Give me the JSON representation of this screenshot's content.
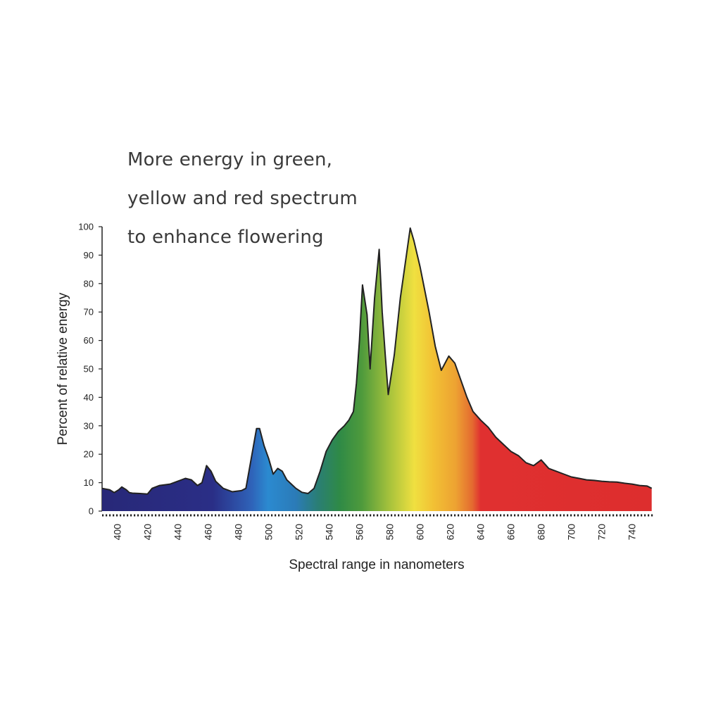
{
  "annotation": {
    "lines": [
      "More energy in green,",
      "yellow and red spectrum",
      "to enhance flowering"
    ]
  },
  "chart_data": {
    "type": "area",
    "title": "",
    "xlabel": "Spectral range in nanometers",
    "ylabel": "Percent of relative energy",
    "xlim": [
      390,
      755
    ],
    "ylim": [
      0,
      100
    ],
    "xticks": [
      400,
      420,
      440,
      460,
      480,
      500,
      520,
      540,
      560,
      580,
      600,
      620,
      640,
      660,
      680,
      700,
      720,
      740
    ],
    "yticks": [
      0,
      10,
      20,
      30,
      40,
      50,
      60,
      70,
      80,
      90,
      100
    ],
    "grid": false,
    "colors": {
      "violet": "#2a2a80",
      "blue": "#2b8ad0",
      "green": "#2f8a46",
      "yellow": "#f0e040",
      "orange": "#f0a030",
      "red": "#e03030",
      "outline": "#222222"
    },
    "series": [
      {
        "x": [
          390,
          395,
          398,
          401,
          403,
          406,
          408,
          410,
          415,
          420,
          423,
          428,
          435,
          440,
          445,
          449,
          453,
          456,
          459,
          462,
          465,
          470,
          476,
          482,
          485,
          488,
          490,
          492,
          494,
          497,
          500,
          503,
          506,
          509,
          512,
          515,
          518,
          522,
          526,
          530,
          534,
          538,
          542,
          546,
          550,
          553,
          556,
          558,
          560,
          562,
          565,
          567,
          570,
          573,
          575,
          577,
          579,
          583,
          587,
          591,
          593.5,
          596,
          600,
          606,
          610,
          614,
          619,
          623,
          627,
          631,
          635,
          640,
          645,
          650,
          655,
          660,
          665,
          670,
          675,
          680,
          685,
          690,
          695,
          700,
          705,
          710,
          715,
          720,
          725,
          730,
          735,
          740,
          745,
          750,
          753
        ],
        "y": [
          8,
          7.5,
          6.5,
          7.5,
          8.5,
          7.5,
          6.5,
          6.3,
          6.2,
          6,
          8,
          9,
          9.5,
          10.5,
          11.5,
          11,
          9,
          10,
          16,
          14,
          10.5,
          8,
          6.8,
          7.2,
          8,
          17,
          23,
          29,
          29,
          23,
          18.5,
          13,
          15,
          14,
          11,
          9.5,
          8,
          6.6,
          6.2,
          8,
          14,
          21,
          25,
          28,
          30,
          32,
          35,
          45,
          60,
          79.5,
          69,
          50,
          75,
          92,
          70,
          55,
          41,
          55,
          75,
          90,
          99.5,
          95,
          86,
          70,
          58,
          49.5,
          54.5,
          52,
          46,
          40,
          35,
          32,
          29.5,
          26,
          23.5,
          21,
          19.5,
          17,
          16,
          18,
          15,
          14,
          13,
          12,
          11.5,
          11,
          10.8,
          10.5,
          10.3,
          10.2,
          9.8,
          9.5,
          9,
          8.8,
          8
        ]
      }
    ]
  }
}
